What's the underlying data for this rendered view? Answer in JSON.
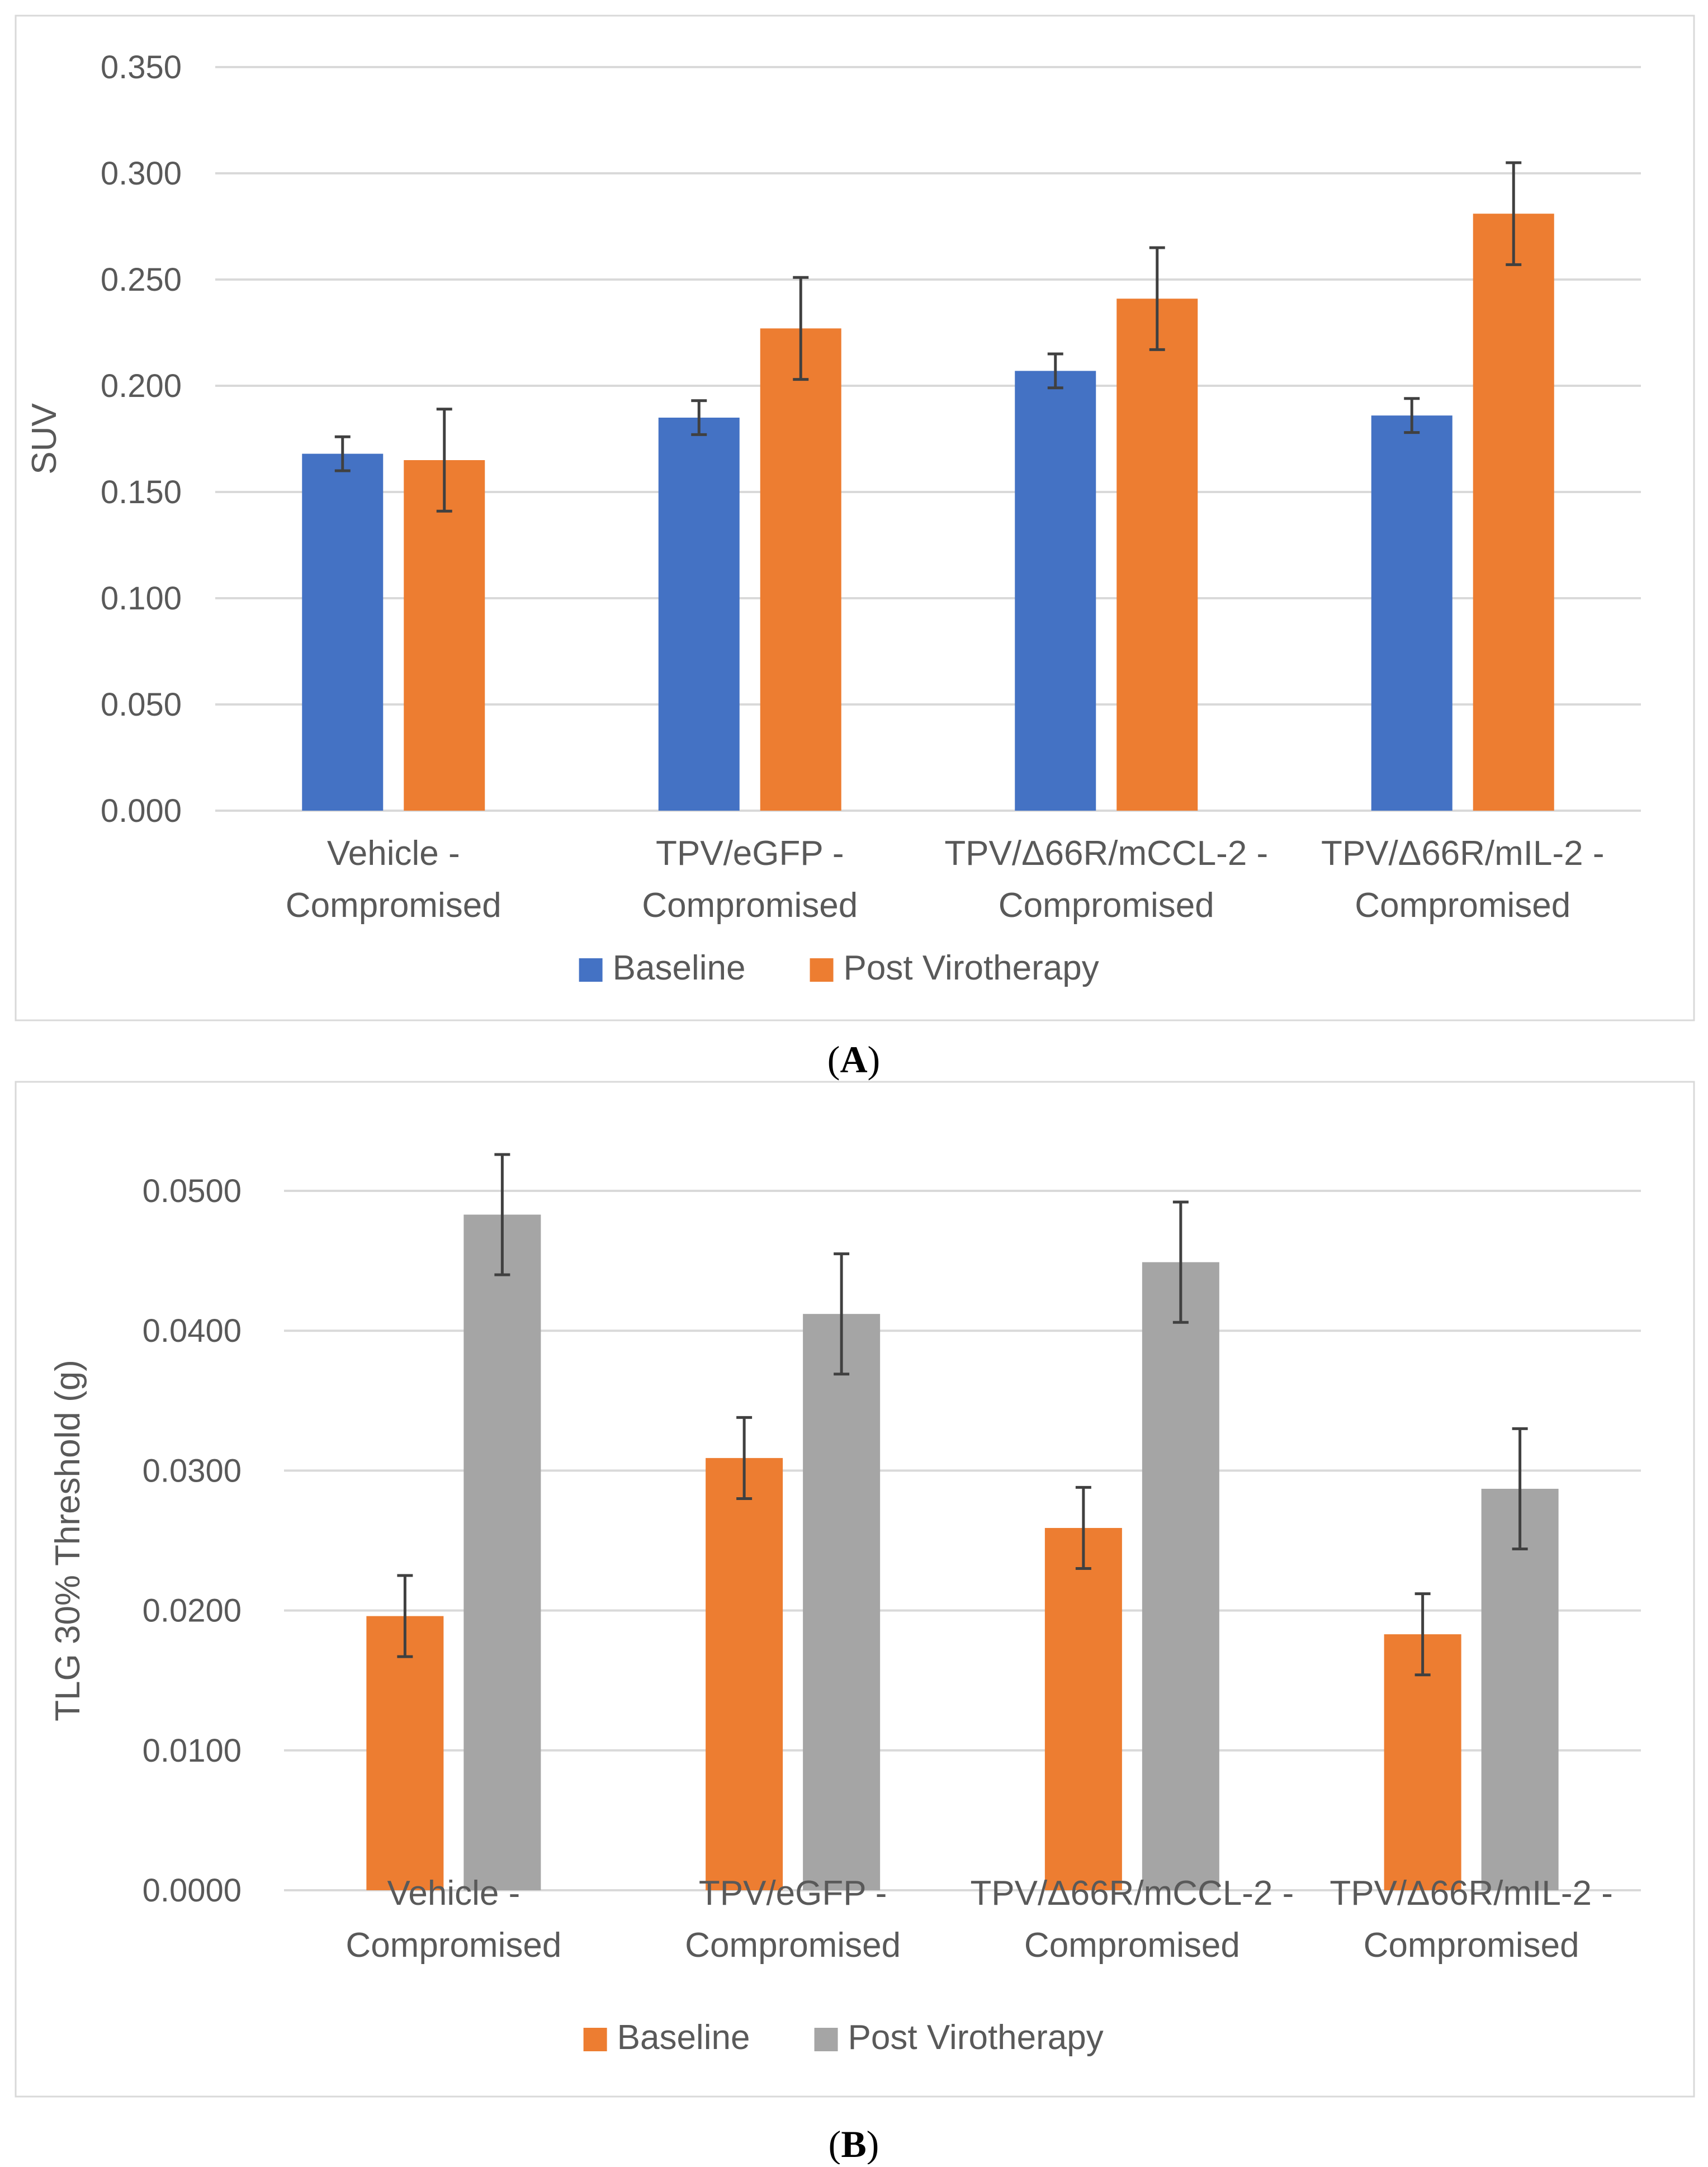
{
  "colors": {
    "blue": "#4472C4",
    "orange": "#ED7D31",
    "gray": "#A5A5A5",
    "grid": "#D9D9D9",
    "text": "#595959",
    "errorbar": "#404040",
    "border": "#D9D9D9"
  },
  "chart_data": [
    {
      "type": "bar",
      "panel_label": "A",
      "ylabel": "SUV",
      "xlabel": "",
      "ylim": [
        0,
        0.35
      ],
      "ytick_values": [
        0,
        0.05,
        0.1,
        0.15,
        0.2,
        0.25,
        0.3,
        0.35
      ],
      "yticks": [
        "0.000",
        "0.050",
        "0.100",
        "0.150",
        "0.200",
        "0.250",
        "0.300",
        "0.350"
      ],
      "categories": [
        [
          "Vehicle -",
          "Compromised"
        ],
        [
          "TPV/eGFP -",
          "Compromised"
        ],
        [
          "TPV/Δ66R/mCCL-2 -",
          "Compromised"
        ],
        [
          "TPV/Δ66R/mIL-2 -",
          "Compromised"
        ]
      ],
      "series": [
        {
          "name": "Baseline",
          "color": "#4472C4",
          "values": [
            0.168,
            0.185,
            0.207,
            0.186
          ],
          "errors": [
            0.008,
            0.008,
            0.008,
            0.008
          ]
        },
        {
          "name": "Post Virotherapy",
          "color": "#ED7D31",
          "values": [
            0.165,
            0.227,
            0.241,
            0.281
          ],
          "errors": [
            0.024,
            0.024,
            0.024,
            0.024
          ]
        }
      ],
      "legend": "bottom",
      "grid": true
    },
    {
      "type": "bar",
      "panel_label": "B",
      "ylabel": "TLG 30% Threshold (g)",
      "xlabel": "",
      "ylim": [
        0,
        0.05
      ],
      "ytick_values": [
        0,
        0.01,
        0.02,
        0.03,
        0.04,
        0.05
      ],
      "yticks": [
        "0.0000",
        "0.0100",
        "0.0200",
        "0.0300",
        "0.0400",
        "0.0500"
      ],
      "categories": [
        [
          "Vehicle -",
          "Compromised"
        ],
        [
          "TPV/eGFP -",
          "Compromised"
        ],
        [
          "TPV/Δ66R/mCCL-2 -",
          "Compromised"
        ],
        [
          "TPV/Δ66R/mIL-2 -",
          "Compromised"
        ]
      ],
      "series": [
        {
          "name": "Baseline",
          "color": "#ED7D31",
          "values": [
            0.0196,
            0.0309,
            0.0259,
            0.0183
          ],
          "errors": [
            0.0029,
            0.0029,
            0.0029,
            0.0029
          ]
        },
        {
          "name": "Post Virotherapy",
          "color": "#A5A5A5",
          "values": [
            0.0483,
            0.0412,
            0.0449,
            0.0287
          ],
          "errors": [
            0.0043,
            0.0043,
            0.0043,
            0.0043
          ]
        }
      ],
      "legend": "bottom",
      "grid": true
    }
  ]
}
